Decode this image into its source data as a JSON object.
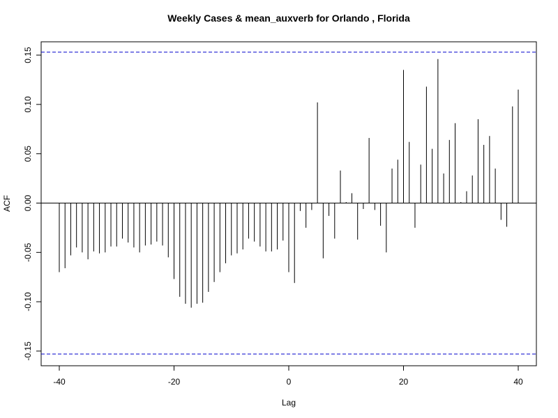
{
  "chart_data": {
    "type": "bar",
    "title": "Weekly Cases & mean_auxverb for Orlando , Florida",
    "xlabel": "Lag",
    "ylabel": "ACF",
    "xlim": [
      -40,
      40
    ],
    "ylim": [
      -0.165,
      0.165
    ],
    "x_ticks": [
      "-40",
      "-20",
      "0",
      "20",
      "40"
    ],
    "y_ticks": [
      "-0.15",
      "-0.10",
      "-0.05",
      "0.00",
      "0.05",
      "0.10",
      "0.15"
    ],
    "confidence_bounds": [
      0.153,
      -0.153
    ],
    "confidence_line_color": "#0000cc",
    "bar_color": "#000000",
    "x": [
      -40,
      -39,
      -38,
      -37,
      -36,
      -35,
      -34,
      -33,
      -32,
      -31,
      -30,
      -29,
      -28,
      -27,
      -26,
      -25,
      -24,
      -23,
      -22,
      -21,
      -20,
      -19,
      -18,
      -17,
      -16,
      -15,
      -14,
      -13,
      -12,
      -11,
      -10,
      -9,
      -8,
      -7,
      -6,
      -5,
      -4,
      -3,
      -2,
      -1,
      0,
      1,
      2,
      3,
      4,
      5,
      6,
      7,
      8,
      9,
      10,
      11,
      12,
      13,
      14,
      15,
      16,
      17,
      18,
      19,
      20,
      21,
      22,
      23,
      24,
      25,
      26,
      27,
      28,
      29,
      30,
      31,
      32,
      33,
      34,
      35,
      36,
      37,
      38,
      39,
      40
    ],
    "values": [
      -0.07,
      -0.066,
      -0.053,
      -0.045,
      -0.05,
      -0.057,
      -0.049,
      -0.051,
      -0.05,
      -0.044,
      -0.044,
      -0.036,
      -0.04,
      -0.045,
      -0.05,
      -0.043,
      -0.042,
      -0.039,
      -0.043,
      -0.055,
      -0.077,
      -0.095,
      -0.102,
      -0.106,
      -0.102,
      -0.101,
      -0.09,
      -0.08,
      -0.07,
      -0.061,
      -0.053,
      -0.051,
      -0.047,
      -0.036,
      -0.039,
      -0.044,
      -0.049,
      -0.049,
      -0.047,
      -0.038,
      -0.07,
      -0.081,
      -0.008,
      -0.025,
      -0.007,
      0.102,
      -0.056,
      -0.013,
      -0.036,
      0.033,
      0.001,
      0.01,
      -0.037,
      -0.006,
      0.066,
      -0.007,
      -0.023,
      -0.05,
      0.035,
      0.044,
      0.135,
      0.062,
      -0.025,
      0.039,
      0.118,
      0.055,
      0.146,
      0.03,
      0.064,
      0.081,
      0.001,
      0.012,
      0.028,
      0.085,
      0.059,
      0.068,
      0.035,
      -0.017,
      -0.024,
      0.098,
      0.115
    ]
  }
}
